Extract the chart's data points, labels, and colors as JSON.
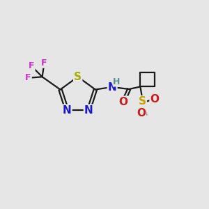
{
  "bg_color": "#e6e6e6",
  "bond_color": "#1a1a1a",
  "bond_lw": 1.6,
  "atom_colors": {
    "C": "#1a1a1a",
    "H": "#5a9090",
    "N": "#1a1acc",
    "O": "#cc1a1a",
    "S_thia": "#aaaa00",
    "S_sulf": "#c8a000",
    "F": "#cc33cc"
  },
  "font_size": 11,
  "font_size_sub": 9
}
